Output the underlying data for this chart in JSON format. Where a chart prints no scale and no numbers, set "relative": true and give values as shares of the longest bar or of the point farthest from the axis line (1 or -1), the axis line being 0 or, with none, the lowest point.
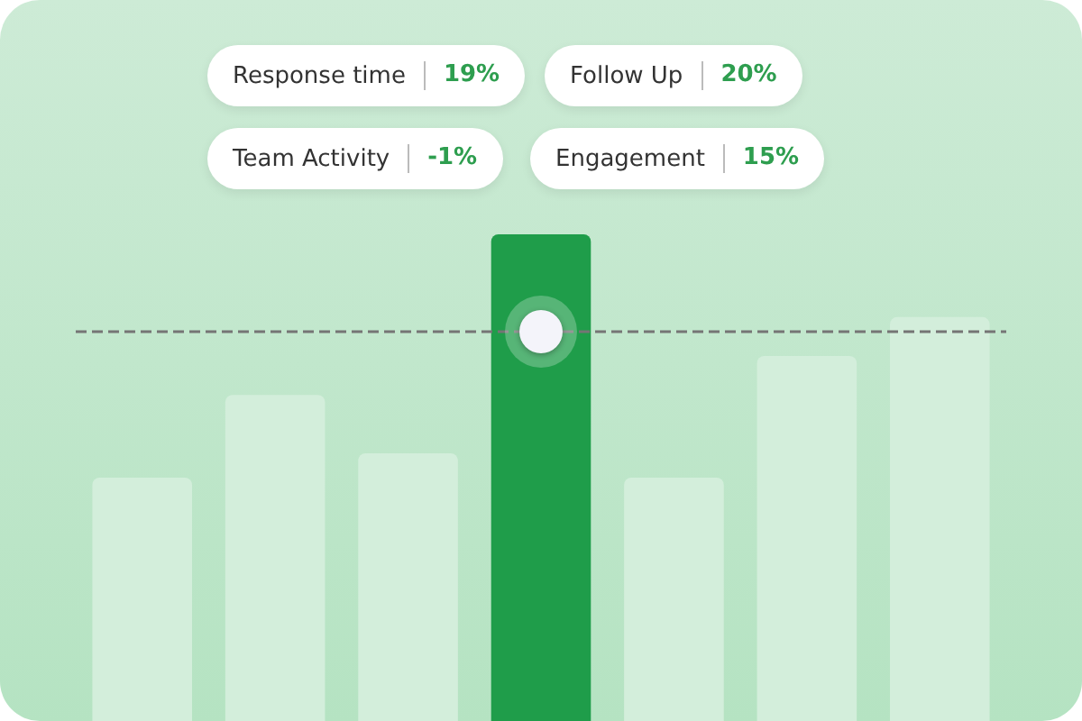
{
  "chart_data": {
    "type": "bar",
    "relative": true,
    "categories": [
      null,
      null,
      null,
      null,
      null,
      null,
      null
    ],
    "values": [
      0.5,
      0.67,
      0.55,
      1,
      0.5,
      0.75,
      0.83
    ],
    "colors": [
      "#d3eedb",
      "#d3eedb",
      "#d3eedb",
      "#1f9d4a",
      "#d3eedb",
      "#d3eedb",
      "#d3eedb"
    ],
    "ref_lines": [
      {
        "axis": "y",
        "value": 0.8,
        "color": "#757575",
        "line_style": "dashed"
      }
    ],
    "annotations": [
      "Response time",
      "19%",
      "Follow Up",
      "20%",
      "Team Activity",
      "-1%",
      "Engagement",
      "15%"
    ]
  }
}
